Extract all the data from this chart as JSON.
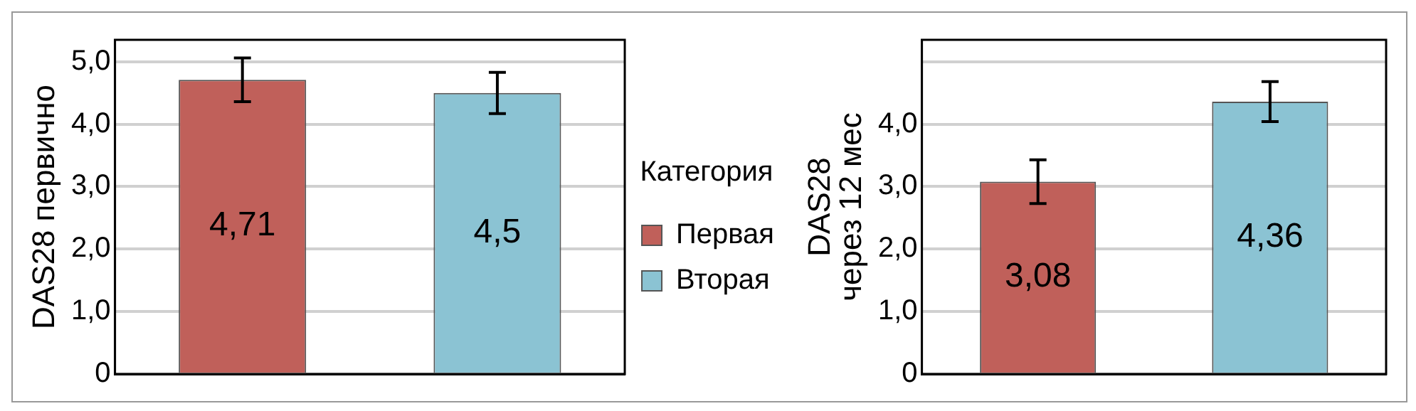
{
  "chart_data": [
    {
      "type": "bar",
      "ylabel": "DAS28 первично",
      "legend_title": "Категория",
      "legend": "right",
      "grid": "y",
      "tick_labels": "y",
      "categories": [
        null,
        null
      ],
      "ylim": [
        0,
        5.35
      ],
      "yticks": [
        0,
        {
          "value": 1,
          "label": "1,0"
        },
        {
          "value": 2,
          "label": "2,0"
        },
        {
          "value": 3,
          "label": "3,0"
        },
        {
          "value": 4,
          "label": "4,0"
        },
        {
          "value": 5,
          "label": "5,0"
        }
      ],
      "series": [
        {
          "name": "Первая",
          "color": "#c0605a",
          "values": [
            4.71,
            null
          ],
          "errors": [
            0.35,
            null
          ],
          "value_labels": [
            "4,71",
            null
          ]
        },
        {
          "name": "Вторая",
          "color": "#8bc3d3",
          "values": [
            null,
            4.5
          ],
          "errors": [
            null,
            0.33
          ],
          "value_labels": [
            null,
            "4,5"
          ]
        }
      ]
    },
    {
      "type": "bar",
      "ylabel": "DAS28 через 12 мес",
      "grid": "y",
      "tick_labels": "y",
      "categories": [
        null,
        null
      ],
      "ylim": [
        0,
        5.35
      ],
      "yticks": [
        0,
        {
          "value": 1,
          "label": "1,0"
        },
        {
          "value": 2,
          "label": "2,0"
        },
        {
          "value": 3,
          "label": "3,0"
        },
        {
          "value": 4,
          "label": "4,0"
        },
        {
          "value": 5,
          "label": null
        }
      ],
      "series": [
        {
          "color": "#c0605a",
          "values": [
            3.08,
            null
          ],
          "errors": [
            0.35,
            null
          ],
          "value_labels": [
            "3,08",
            null
          ]
        },
        {
          "color": "#8bc3d3",
          "values": [
            null,
            4.36
          ],
          "errors": [
            null,
            0.32
          ],
          "value_labels": [
            null,
            "4,36"
          ]
        }
      ]
    }
  ]
}
